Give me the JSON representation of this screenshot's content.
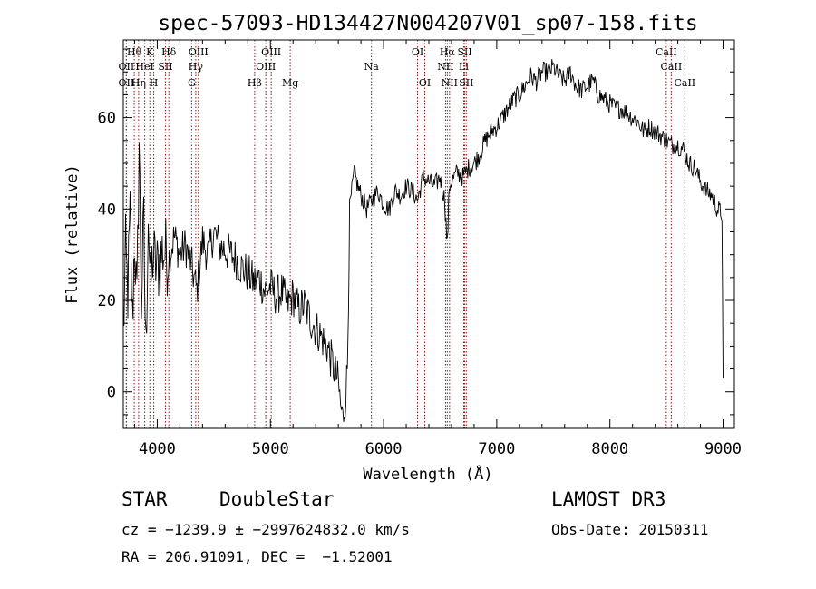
{
  "chart_data": {
    "type": "line",
    "title": "spec-57093-HD134427N004207V01_sp07-158.fits",
    "xlabel": "Wavelength (Å)",
    "ylabel": "Flux (relative)",
    "xlim": [
      3700,
      9100
    ],
    "ylim": [
      -8,
      77
    ],
    "xticks": [
      4000,
      5000,
      6000,
      7000,
      8000,
      9000
    ],
    "yticks": [
      0,
      20,
      40,
      60
    ],
    "grid": false,
    "series": [
      {
        "x": [
          3700,
          3720,
          3740,
          3760,
          3780,
          3800,
          3820,
          3840,
          3860,
          3880,
          3900,
          3920,
          3940,
          3960,
          3980,
          4000,
          4050,
          4100,
          4150,
          4200,
          4250,
          4300,
          4350,
          4400,
          4450,
          4500,
          4550,
          4600,
          4650,
          4700,
          4750,
          4800,
          4850,
          4900,
          4950,
          5000,
          5050,
          5100,
          5150,
          5200,
          5250,
          5300,
          5350,
          5400,
          5450,
          5500,
          5550,
          5600,
          5620,
          5640,
          5660,
          5680,
          5690,
          5700,
          5720,
          5740,
          5760,
          5800,
          5850,
          5900,
          5950,
          6000,
          6050,
          6100,
          6150,
          6200,
          6250,
          6300,
          6350,
          6400,
          6450,
          6500,
          6540,
          6563,
          6580,
          6600,
          6650,
          6700,
          6750,
          6800,
          6850,
          6900,
          6950,
          7000,
          7050,
          7100,
          7150,
          7200,
          7250,
          7300,
          7350,
          7400,
          7450,
          7500,
          7550,
          7600,
          7650,
          7700,
          7750,
          7800,
          7850,
          7900,
          7950,
          8000,
          8050,
          8100,
          8150,
          8200,
          8250,
          8300,
          8350,
          8400,
          8450,
          8500,
          8550,
          8600,
          8650,
          8700,
          8750,
          8800,
          8850,
          8900,
          8950,
          8990,
          9000
        ],
        "values": [
          12,
          30,
          22,
          38,
          15,
          34,
          18,
          55,
          20,
          36,
          8,
          40,
          22,
          30,
          28,
          27,
          31,
          29,
          34,
          30,
          32,
          28,
          22,
          33,
          30,
          35,
          32,
          31,
          30,
          29,
          27,
          26,
          24,
          25,
          22,
          23,
          21,
          22,
          19,
          21,
          18,
          19,
          16,
          14,
          12,
          10,
          6,
          2,
          -3,
          -6,
          -2,
          5,
          22,
          40,
          44,
          48,
          46,
          43,
          40,
          42,
          44,
          41,
          40,
          44,
          43,
          45,
          44,
          42,
          47,
          46,
          45,
          47,
          42,
          32,
          45,
          46,
          48,
          47,
          49,
          50,
          52,
          55,
          57,
          58,
          60,
          62,
          64,
          65,
          67,
          69,
          68,
          70,
          70,
          71,
          69,
          68,
          70,
          67,
          66,
          67,
          68,
          65,
          64,
          63,
          62,
          62,
          61,
          60,
          59,
          57,
          58,
          57,
          56,
          55,
          54,
          54,
          53,
          50,
          49,
          46,
          44,
          43,
          40,
          39,
          3
        ]
      }
    ],
    "spectral_lines": [
      {
        "label": "Hθ",
        "x": 3797,
        "row": 1
      },
      {
        "label": "OII",
        "x": 3727,
        "row": 2
      },
      {
        "label": "OII",
        "x": 3727,
        "row": 3
      },
      {
        "label": "Hη",
        "x": 3835,
        "row": 3
      },
      {
        "label": "HeI",
        "x": 3889,
        "row": 2
      },
      {
        "label": "K",
        "x": 3934,
        "row": 1
      },
      {
        "label": "H",
        "x": 3969,
        "row": 3
      },
      {
        "label": "SII",
        "x": 4072,
        "row": 2
      },
      {
        "label": "Hδ",
        "x": 4102,
        "row": 1
      },
      {
        "label": "OIII",
        "x": 4363,
        "row": 1
      },
      {
        "label": "Hγ",
        "x": 4340,
        "row": 2
      },
      {
        "label": "G",
        "x": 4304,
        "row": 3
      },
      {
        "label": "Hβ",
        "x": 4861,
        "row": 3
      },
      {
        "label": "OIII",
        "x": 5007,
        "row": 1
      },
      {
        "label": "OIII",
        "x": 4959,
        "row": 2
      },
      {
        "label": "Mg",
        "x": 5175,
        "row": 3
      },
      {
        "label": "Na",
        "x": 5893,
        "row": 2
      },
      {
        "label": "OI",
        "x": 6300,
        "row": 1
      },
      {
        "label": "OI",
        "x": 6364,
        "row": 3
      },
      {
        "label": "Hα",
        "x": 6563,
        "row": 1
      },
      {
        "label": "NII",
        "x": 6548,
        "row": 2
      },
      {
        "label": "NII",
        "x": 6583,
        "row": 3
      },
      {
        "label": "SII",
        "x": 6717,
        "row": 1
      },
      {
        "label": "Li",
        "x": 6708,
        "row": 2
      },
      {
        "label": "SII",
        "x": 6731,
        "row": 3
      },
      {
        "label": "CaII",
        "x": 8498,
        "row": 1
      },
      {
        "label": "CaII",
        "x": 8542,
        "row": 2
      },
      {
        "label": "CaII",
        "x": 8662,
        "row": 3
      }
    ],
    "line_color": "#8b1a1a"
  },
  "info": {
    "class": "STAR",
    "subclass": "DoubleStar",
    "survey": "LAMOST DR3",
    "cz": "cz = −1239.9 ± −2997624832.0 km/s",
    "obs_date": "Obs-Date: 20150311",
    "radec": "RA = 206.91091, DEC =  −1.52001"
  }
}
